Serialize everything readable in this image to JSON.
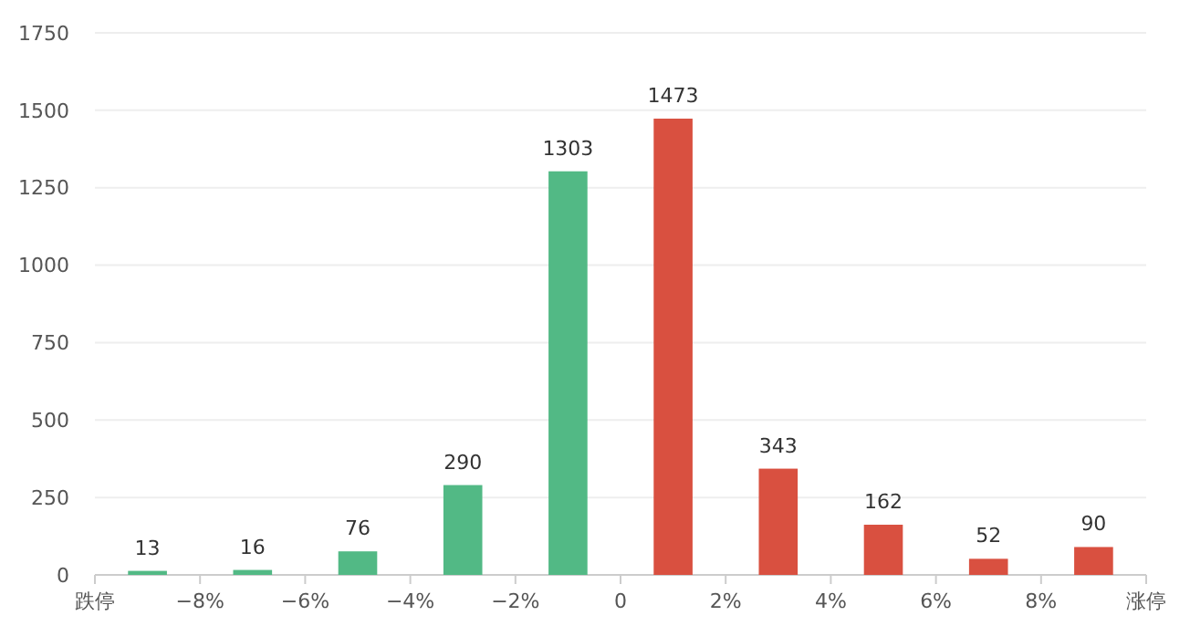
{
  "chart_data": {
    "type": "histogram",
    "bins": [
      -10,
      -8,
      -6,
      -4,
      -2,
      0,
      2,
      4,
      6,
      8,
      10
    ],
    "values": [
      13,
      16,
      76,
      290,
      1303,
      1473,
      343,
      162,
      52,
      90
    ],
    "colors": [
      "#52b985",
      "#52b985",
      "#52b985",
      "#52b985",
      "#52b985",
      "#d95040",
      "#d95040",
      "#d95040",
      "#d95040",
      "#d95040"
    ],
    "xlim": [
      -10,
      10
    ],
    "xticks": [
      {
        "value": -10,
        "label": "跌停"
      },
      {
        "value": -8,
        "label": "−8%"
      },
      {
        "value": -6,
        "label": "−6%"
      },
      {
        "value": -4,
        "label": "−4%"
      },
      {
        "value": -2,
        "label": "−2%"
      },
      0,
      {
        "value": 2,
        "label": "2%"
      },
      {
        "value": 4,
        "label": "4%"
      },
      {
        "value": 6,
        "label": "6%"
      },
      {
        "value": 8,
        "label": "8%"
      },
      {
        "value": 10,
        "label": "涨停"
      }
    ],
    "ylim": [
      0,
      1750
    ],
    "yticks": [
      0,
      250,
      500,
      750,
      1000,
      1250,
      1500,
      1750
    ],
    "grid": "y",
    "data_labels": true
  }
}
